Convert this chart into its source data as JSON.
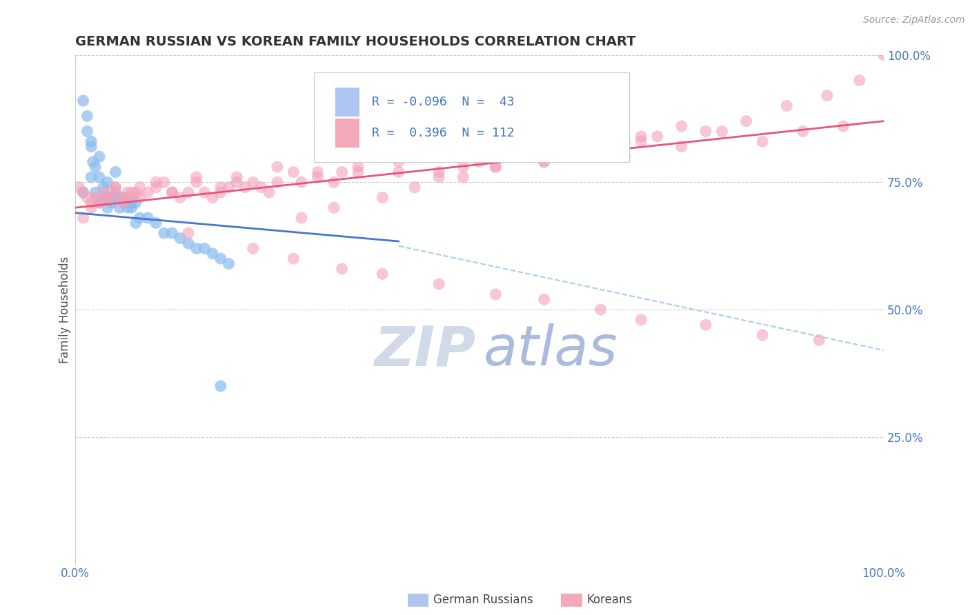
{
  "title": "GERMAN RUSSIAN VS KOREAN FAMILY HOUSEHOLDS CORRELATION CHART",
  "source": "Source: ZipAtlas.com",
  "ylabel": "Family Households",
  "xlim": [
    0.0,
    100.0
  ],
  "ylim": [
    0.0,
    100.0
  ],
  "right_yticks": [
    25.0,
    50.0,
    75.0,
    100.0
  ],
  "right_ytick_labels": [
    "25.0%",
    "50.0%",
    "75.0%",
    "100.0%"
  ],
  "german_russian_color": "#88bbee",
  "korean_color": "#f4a0b8",
  "blue_line_color": "#4477cc",
  "pink_line_color": "#e85577",
  "dashed_line_color": "#aaccee",
  "blue_line_x": [
    0.0,
    100.0
  ],
  "blue_line_y": [
    69.0,
    55.0
  ],
  "blue_solid_end_x": 40.0,
  "pink_line_x": [
    0.0,
    100.0
  ],
  "pink_line_y": [
    70.0,
    87.0
  ],
  "dashed_line_x": [
    40.0,
    100.0
  ],
  "dashed_line_y": [
    62.5,
    42.0
  ],
  "watermark_zip_color": "#d0dae8",
  "watermark_atlas_color": "#aabbdd",
  "background_color": "#ffffff",
  "grid_color": "#cccccc",
  "title_color": "#333333",
  "axis_color": "#4477bb",
  "legend_r1": "R = -0.096",
  "legend_n1": "N =  43",
  "legend_r2": "R =  0.396",
  "legend_n2": "N = 112",
  "legend_color1": "#aec6f0",
  "legend_color2": "#f4a9b8",
  "gr_x": [
    1.0,
    1.5,
    2.0,
    2.2,
    2.5,
    3.0,
    3.5,
    4.0,
    4.5,
    5.0,
    5.5,
    6.0,
    6.5,
    7.0,
    7.5,
    8.0,
    9.0,
    10.0,
    11.0,
    12.0,
    13.0,
    14.0,
    15.0,
    16.0,
    17.0,
    18.0,
    19.0,
    2.0,
    3.0,
    4.0,
    5.0,
    1.5,
    2.5,
    3.5,
    6.0,
    7.0,
    1.0,
    2.0,
    3.0,
    4.0,
    5.0,
    18.0,
    7.5
  ],
  "gr_y": [
    91.0,
    88.0,
    76.0,
    79.0,
    73.0,
    71.0,
    72.0,
    70.0,
    71.0,
    72.0,
    70.0,
    71.0,
    70.0,
    70.0,
    71.0,
    68.0,
    68.0,
    67.0,
    65.0,
    65.0,
    64.0,
    63.0,
    62.0,
    62.0,
    61.0,
    60.0,
    59.0,
    82.0,
    80.0,
    75.0,
    77.0,
    85.0,
    78.0,
    74.0,
    72.0,
    71.0,
    73.0,
    83.0,
    76.0,
    72.0,
    73.0,
    35.0,
    67.0
  ],
  "ko_x": [
    0.5,
    1.0,
    1.5,
    2.0,
    2.5,
    3.0,
    3.5,
    4.0,
    4.5,
    5.0,
    5.5,
    6.0,
    6.5,
    7.0,
    7.5,
    8.0,
    9.0,
    10.0,
    11.0,
    12.0,
    13.0,
    14.0,
    15.0,
    16.0,
    17.0,
    18.0,
    19.0,
    20.0,
    21.0,
    22.0,
    23.0,
    24.0,
    25.0,
    27.0,
    28.0,
    30.0,
    32.0,
    33.0,
    35.0,
    38.0,
    40.0,
    42.0,
    45.0,
    48.0,
    50.0,
    52.0,
    55.0,
    58.0,
    60.0,
    62.0,
    65.0,
    68.0,
    70.0,
    75.0,
    80.0,
    85.0,
    90.0,
    95.0,
    1.0,
    2.0,
    3.0,
    4.0,
    5.0,
    6.0,
    7.0,
    8.0,
    10.0,
    12.0,
    15.0,
    18.0,
    20.0,
    25.0,
    30.0,
    35.0,
    40.0,
    45.0,
    50.0,
    55.0,
    60.0,
    65.0,
    70.0,
    75.0,
    28.0,
    32.0,
    38.0,
    42.0,
    48.0,
    52.0,
    58.0,
    62.0,
    68.0,
    72.0,
    78.0,
    83.0,
    88.0,
    93.0,
    97.0,
    100.0,
    14.0,
    22.0,
    27.0,
    33.0,
    38.0,
    45.0,
    52.0,
    58.0,
    65.0,
    70.0,
    78.0,
    85.0,
    92.0
  ],
  "ko_y": [
    74.0,
    73.0,
    72.0,
    71.0,
    72.0,
    71.0,
    73.0,
    72.0,
    73.0,
    74.0,
    72.0,
    71.0,
    73.0,
    72.0,
    73.0,
    72.0,
    73.0,
    74.0,
    75.0,
    73.0,
    72.0,
    73.0,
    75.0,
    73.0,
    72.0,
    73.0,
    74.0,
    75.0,
    74.0,
    75.0,
    74.0,
    73.0,
    75.0,
    77.0,
    75.0,
    77.0,
    75.0,
    77.0,
    78.0,
    80.0,
    77.0,
    80.0,
    76.0,
    78.0,
    80.0,
    78.0,
    80.0,
    79.0,
    80.0,
    82.0,
    83.0,
    80.0,
    83.0,
    82.0,
    85.0,
    83.0,
    85.0,
    86.0,
    68.0,
    70.0,
    71.0,
    72.0,
    74.0,
    72.0,
    73.0,
    74.0,
    75.0,
    73.0,
    76.0,
    74.0,
    76.0,
    78.0,
    76.0,
    77.0,
    79.0,
    77.0,
    79.0,
    80.0,
    81.0,
    82.0,
    84.0,
    86.0,
    68.0,
    70.0,
    72.0,
    74.0,
    76.0,
    78.0,
    79.0,
    81.0,
    83.0,
    84.0,
    85.0,
    87.0,
    90.0,
    92.0,
    95.0,
    100.0,
    65.0,
    62.0,
    60.0,
    58.0,
    57.0,
    55.0,
    53.0,
    52.0,
    50.0,
    48.0,
    47.0,
    45.0,
    44.0
  ]
}
